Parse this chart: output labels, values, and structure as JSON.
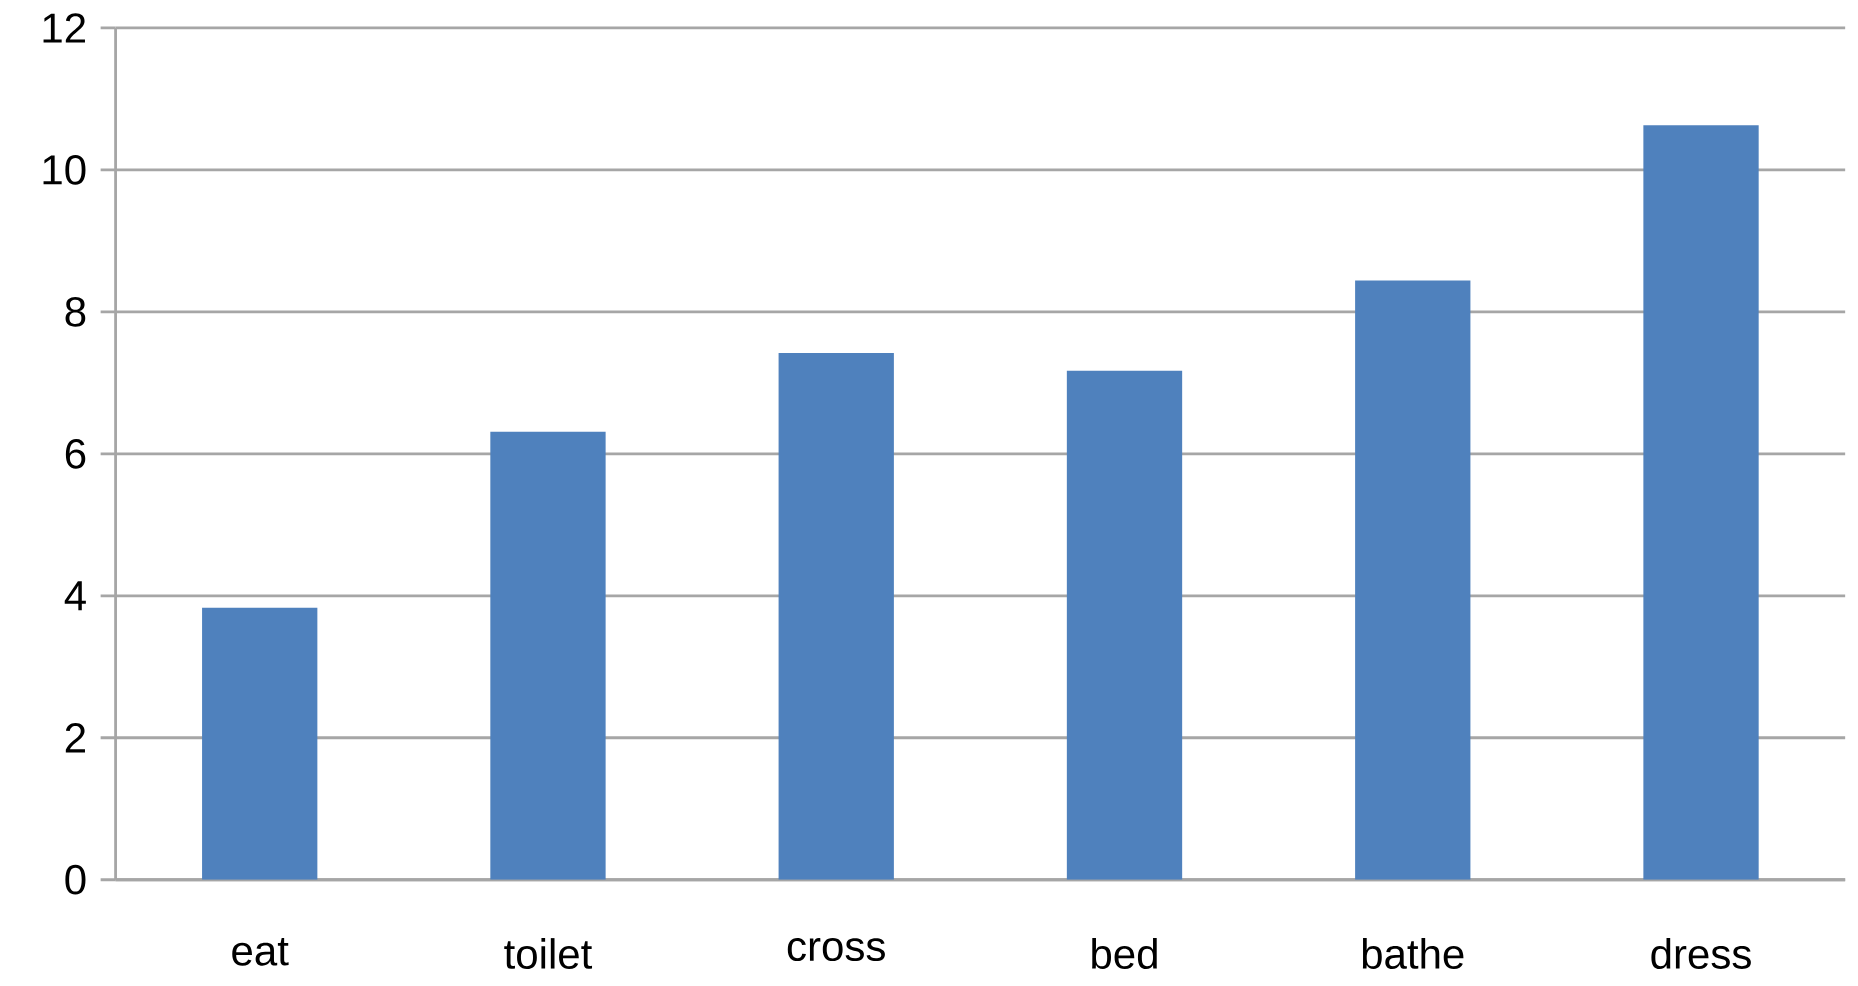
{
  "chart_data": {
    "type": "bar",
    "categories": [
      "eat",
      "toilet",
      "cross",
      "bed",
      "bathe",
      "dress"
    ],
    "values": [
      3.83,
      6.31,
      7.42,
      7.17,
      8.44,
      10.63
    ],
    "color": "#4f81bd",
    "ylim": [
      0,
      12
    ],
    "yticks": [
      0,
      2,
      4,
      6,
      8,
      10,
      12
    ],
    "grid": "y"
  }
}
